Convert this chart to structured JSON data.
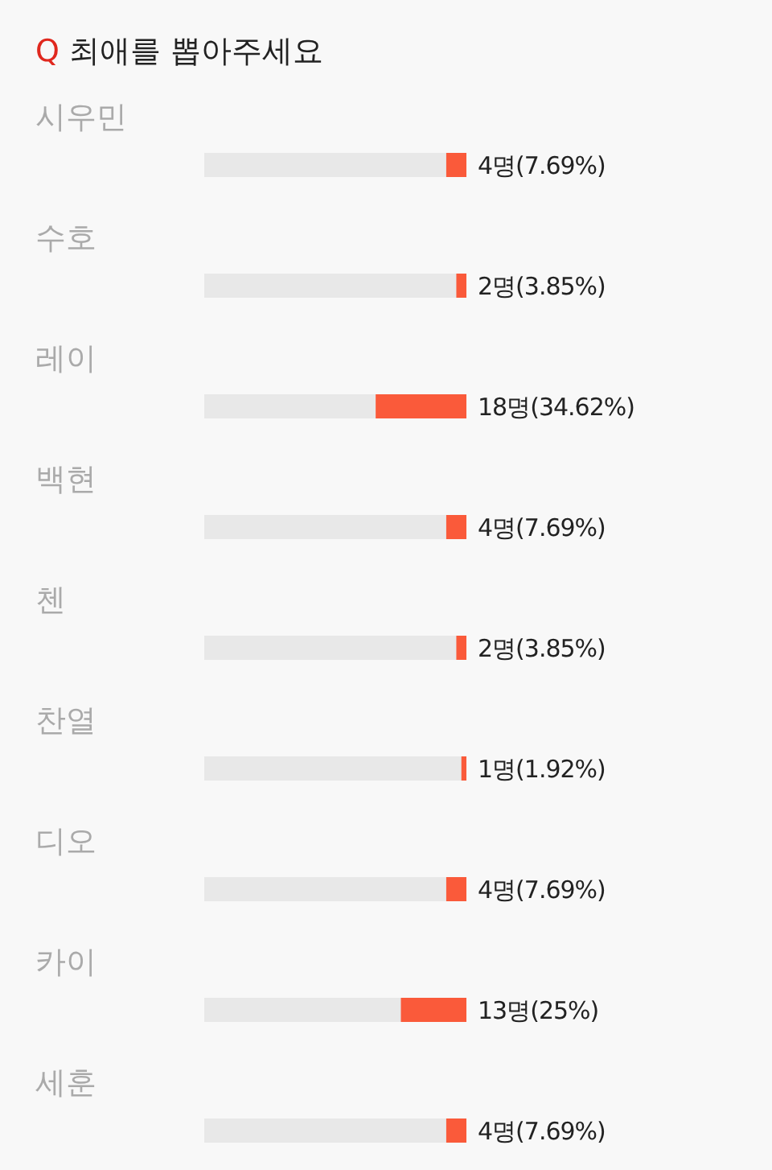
{
  "chart_data": {
    "type": "bar",
    "orientation": "horizontal",
    "title": "Q 최애를 뽑아주세요",
    "categories": [
      "시우민",
      "수호",
      "레이",
      "백현",
      "첸",
      "찬열",
      "디오",
      "카이",
      "세훈"
    ],
    "values": [
      4,
      2,
      18,
      4,
      2,
      1,
      4,
      13,
      4
    ],
    "value_labels": [
      "4명(7.69%)",
      "2명(3.85%)",
      "18명(34.62%)",
      "4명(7.69%)",
      "2명(3.85%)",
      "1명(1.92%)",
      "4명(7.69%)",
      "13명(25%)",
      "4명(7.69%)"
    ],
    "color": "#fa5a3a",
    "xlim": [
      52,
      0
    ]
  }
}
